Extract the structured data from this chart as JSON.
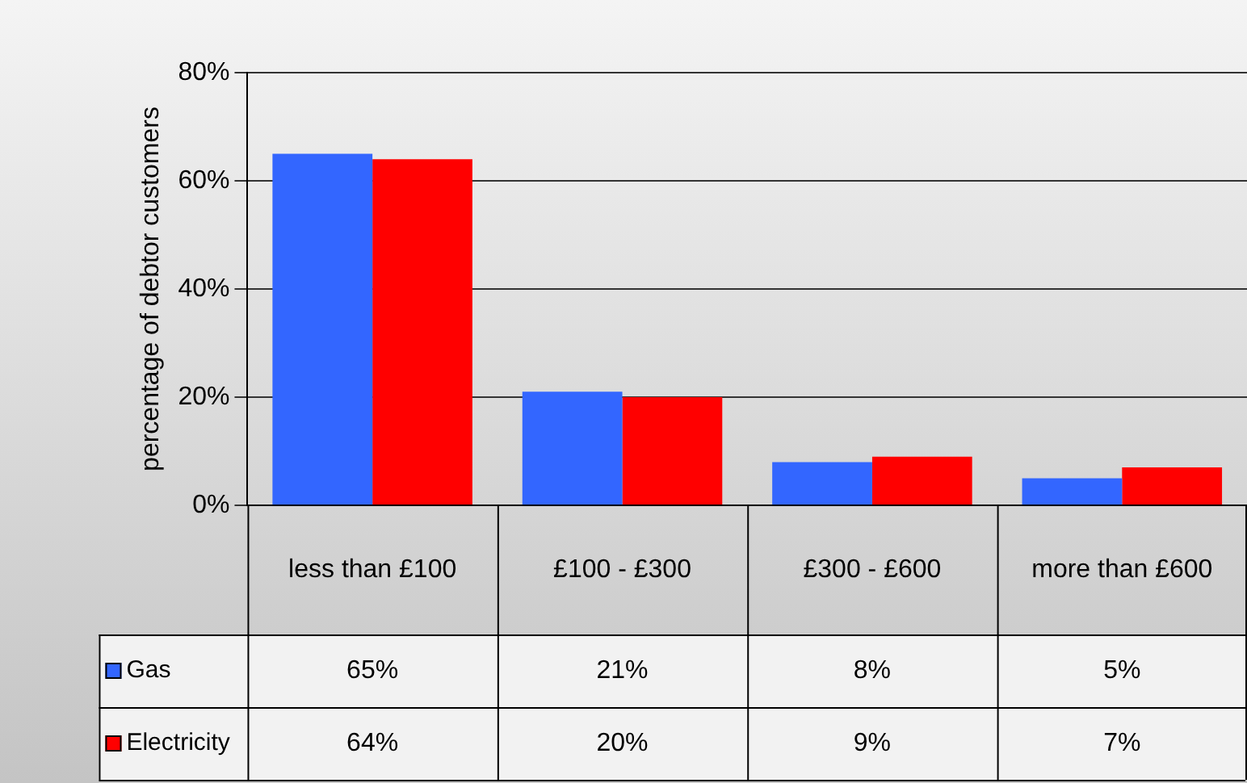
{
  "chart_data": {
    "type": "bar",
    "ylabel": "percentage of debtor customers",
    "categories": [
      "less than £100",
      "£100 - £300",
      "£300 - £600",
      "more than £600"
    ],
    "series": [
      {
        "name": "Gas",
        "color": "#3366ff",
        "values": [
          65,
          21,
          8,
          5
        ],
        "value_labels": [
          "65%",
          "21%",
          "8%",
          "5%"
        ]
      },
      {
        "name": "Electricity",
        "color": "#ff0000",
        "values": [
          64,
          20,
          9,
          7
        ],
        "value_labels": [
          "64%",
          "20%",
          "9%",
          "7%"
        ]
      }
    ],
    "ylim": [
      0,
      80
    ],
    "yticks": [
      {
        "value": 0,
        "label": "0%"
      },
      {
        "value": 20,
        "label": "20%"
      },
      {
        "value": 40,
        "label": "40%"
      },
      {
        "value": 60,
        "label": "60%"
      },
      {
        "value": 80,
        "label": "80%"
      }
    ],
    "grid": "y",
    "legend": "bottom"
  }
}
